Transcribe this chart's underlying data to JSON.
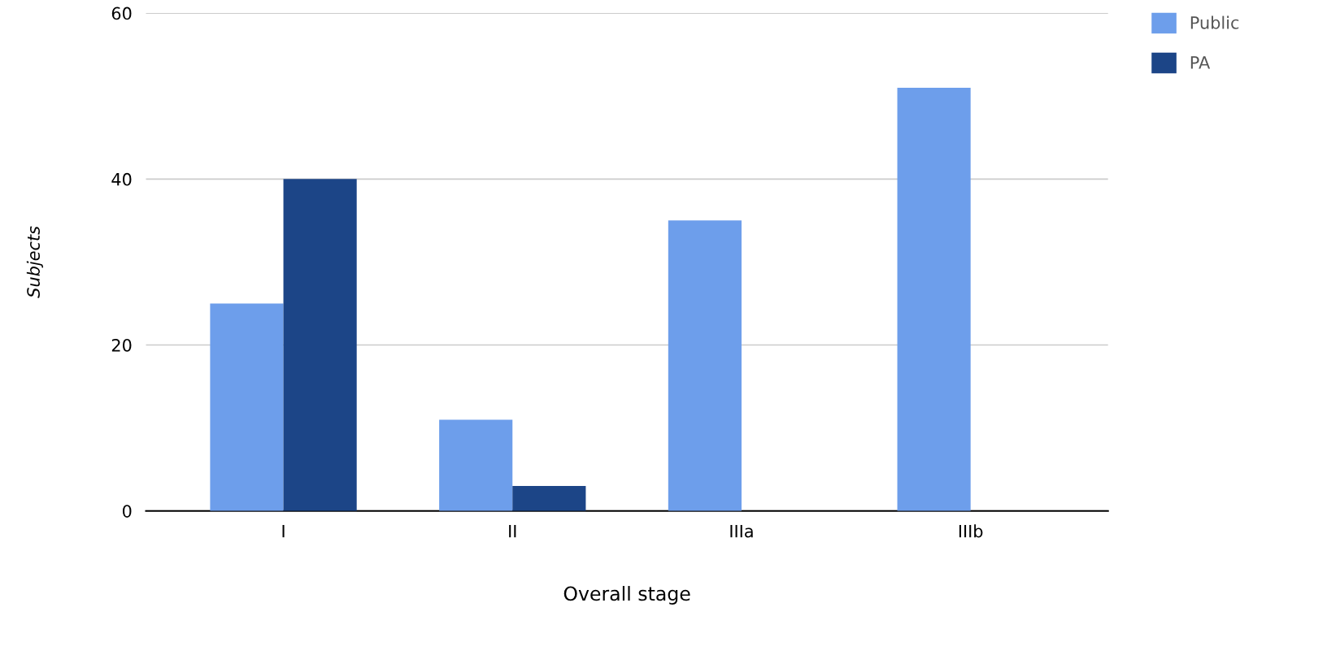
{
  "chart_data": {
    "type": "bar",
    "xlabel": "Overall stage",
    "ylabel": "Subjects",
    "categories": [
      "I",
      "II",
      "IIIa",
      "IIIb"
    ],
    "series": [
      {
        "name": "Public",
        "color": "#6d9eeb",
        "values": [
          25,
          11,
          35,
          51
        ]
      },
      {
        "name": "PA",
        "color": "#1c4587",
        "values": [
          40,
          3,
          0,
          0
        ]
      }
    ],
    "ylim": [
      0,
      60
    ],
    "yticks": [
      0,
      20,
      40,
      60
    ],
    "grid": "y",
    "legend": "top right"
  }
}
